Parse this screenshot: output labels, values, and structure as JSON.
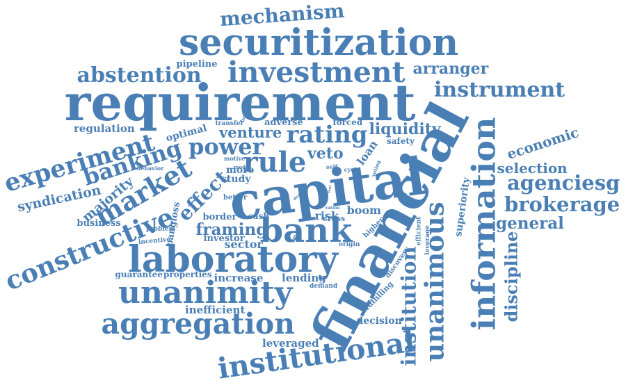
{
  "accent_color": "#4a7fb5",
  "words": [
    {
      "id": "capital",
      "text": "capital"
    },
    {
      "id": "financial",
      "text": "financial"
    },
    {
      "id": "requirement",
      "text": "requirement"
    },
    {
      "id": "securitization",
      "text": "securitization"
    },
    {
      "id": "investment",
      "text": "investment"
    },
    {
      "id": "laboratory",
      "text": "laboratory"
    },
    {
      "id": "information",
      "text": "information"
    },
    {
      "id": "unanimity",
      "text": "unanimity"
    },
    {
      "id": "aggregation",
      "text": "aggregation"
    },
    {
      "id": "institutional",
      "text": "institutional"
    },
    {
      "id": "unanimous",
      "text": "unanimous"
    },
    {
      "id": "constructive",
      "text": "constructive"
    },
    {
      "id": "experiment",
      "text": "experiment"
    },
    {
      "id": "bank",
      "text": "bank"
    },
    {
      "id": "market",
      "text": "market"
    },
    {
      "id": "rule",
      "text": "rule"
    },
    {
      "id": "power",
      "text": "power"
    },
    {
      "id": "rating",
      "text": "rating"
    },
    {
      "id": "banking",
      "text": "banking"
    },
    {
      "id": "abstention",
      "text": "abstention"
    },
    {
      "id": "mechanism",
      "text": "mechanism"
    },
    {
      "id": "instrument",
      "text": "instrument"
    },
    {
      "id": "brokerage",
      "text": "brokerage"
    },
    {
      "id": "agenciesg",
      "text": "agenciesg"
    },
    {
      "id": "institution",
      "text": "institution"
    },
    {
      "id": "discipline",
      "text": "discipline"
    },
    {
      "id": "effect",
      "text": "effect"
    },
    {
      "id": "venture",
      "text": "venture"
    },
    {
      "id": "liquidity",
      "text": "liquidity"
    },
    {
      "id": "framing",
      "text": "framing"
    },
    {
      "id": "general",
      "text": "general"
    },
    {
      "id": "selection",
      "text": "selection"
    },
    {
      "id": "economic",
      "text": "economic"
    },
    {
      "id": "arranger",
      "text": "arranger"
    },
    {
      "id": "syndication",
      "text": "syndication"
    },
    {
      "id": "majority",
      "text": "majority"
    },
    {
      "id": "veto",
      "text": "veto"
    },
    {
      "id": "regulation",
      "text": "regulation"
    },
    {
      "id": "sector",
      "text": "sector"
    },
    {
      "id": "leveraged",
      "text": "leveraged"
    },
    {
      "id": "inefficient",
      "text": "inefficient"
    },
    {
      "id": "increase",
      "text": "increase"
    },
    {
      "id": "lending",
      "text": "lending"
    },
    {
      "id": "decision",
      "text": "decision"
    },
    {
      "id": "fulfilling",
      "text": "fulfilling"
    },
    {
      "id": "superiority",
      "text": "superiority"
    },
    {
      "id": "boom",
      "text": "boom"
    },
    {
      "id": "loan",
      "text": "loan"
    },
    {
      "id": "risk",
      "text": "risk"
    },
    {
      "id": "business",
      "text": "business"
    },
    {
      "id": "panglos",
      "text": "pangloss"
    },
    {
      "id": "border",
      "text": "border"
    },
    {
      "id": "investor",
      "text": "investor"
    },
    {
      "id": "guarantee",
      "text": "guarantee"
    },
    {
      "id": "properties",
      "text": "properties"
    },
    {
      "id": "optimal",
      "text": "optimal"
    },
    {
      "id": "pipeline",
      "text": "pipeline"
    },
    {
      "id": "adverse",
      "text": "adverse"
    },
    {
      "id": "forced",
      "text": "forced"
    },
    {
      "id": "safety",
      "text": "safety"
    },
    {
      "id": "more",
      "text": "more"
    },
    {
      "id": "study",
      "text": "study"
    },
    {
      "id": "cash",
      "text": "cash"
    },
    {
      "id": "cross",
      "text": "cross"
    },
    {
      "id": "better",
      "text": "better"
    },
    {
      "id": "higher",
      "text": "higher"
    },
    {
      "id": "discovery",
      "text": "discovery"
    },
    {
      "id": "leverage",
      "text": "leverage"
    },
    {
      "id": "efficient",
      "text": "efficient"
    },
    {
      "id": "origin",
      "text": "origin"
    },
    {
      "id": "demand",
      "text": "demand"
    },
    {
      "id": "transfer",
      "text": "transfer"
    },
    {
      "id": "holding",
      "text": "holding"
    },
    {
      "id": "behavior",
      "text": "behavior"
    },
    {
      "id": "problem",
      "text": "problem"
    },
    {
      "id": "incentive",
      "text": "incentive"
    },
    {
      "id": "motive",
      "text": "motive"
    },
    {
      "id": "model",
      "text": "model"
    },
    {
      "id": "self",
      "text": "self"
    },
    {
      "id": "cycle",
      "text": "cycle"
    },
    {
      "id": "voting",
      "text": "voting"
    },
    {
      "id": "ration",
      "text": "ration"
    },
    {
      "id": "deal",
      "text": "deal"
    },
    {
      "id": "rent",
      "text": "rent"
    },
    {
      "id": "side",
      "text": "side"
    }
  ]
}
